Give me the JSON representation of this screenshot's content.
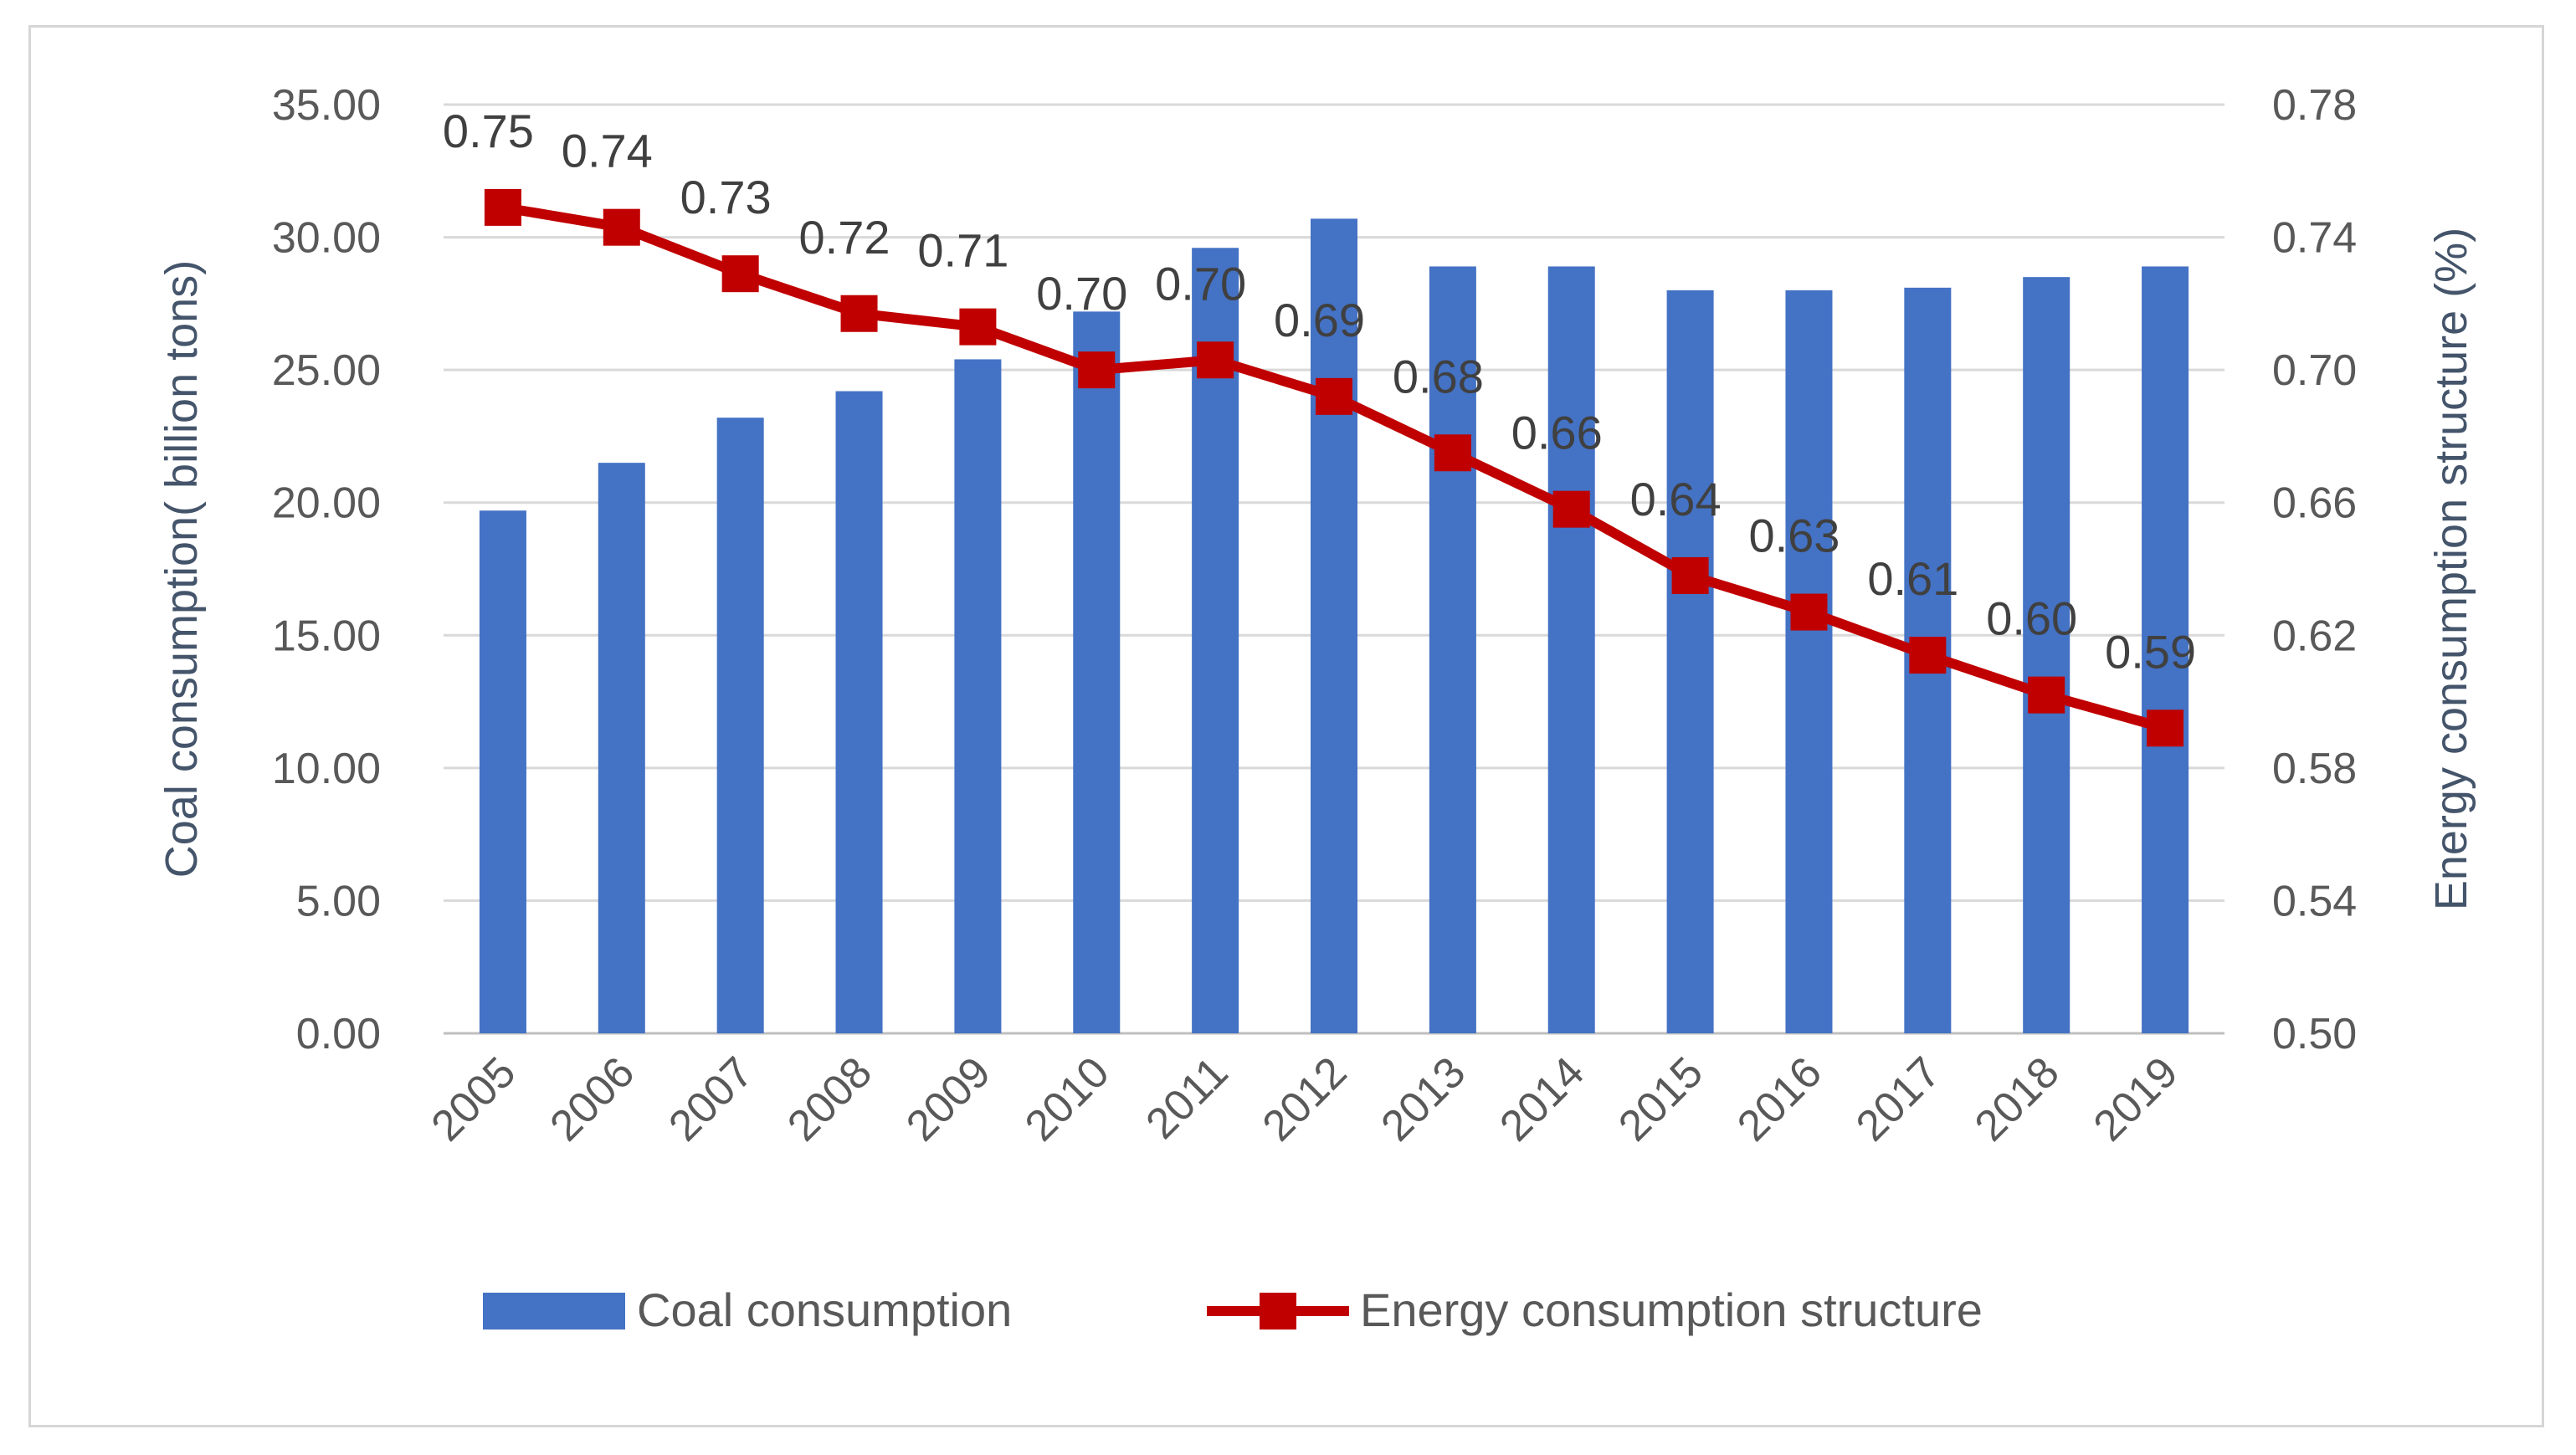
{
  "chart_data": {
    "type": "bar+line",
    "categories": [
      "2005",
      "2006",
      "2007",
      "2008",
      "2009",
      "2010",
      "2011",
      "2012",
      "2013",
      "2014",
      "2015",
      "2016",
      "2017",
      "2018",
      "2019"
    ],
    "series": [
      {
        "name": "Coal consumption",
        "type": "bar",
        "axis": "left",
        "color": "#4472c4",
        "values": [
          19.7,
          21.5,
          23.2,
          24.2,
          25.4,
          27.2,
          29.6,
          30.7,
          28.9,
          28.9,
          28.0,
          28.0,
          28.1,
          28.5,
          28.9
        ]
      },
      {
        "name": "Energy consumption structure",
        "type": "line",
        "axis": "right",
        "color": "#c00000",
        "values": [
          0.749,
          0.743,
          0.729,
          0.717,
          0.713,
          0.7,
          0.703,
          0.692,
          0.675,
          0.658,
          0.638,
          0.627,
          0.614,
          0.602,
          0.592
        ],
        "labels": [
          "0.75",
          "0.74",
          "0.73",
          "0.72",
          "0.71",
          "0.70",
          "0.70",
          "0.69",
          "0.68",
          "0.66",
          "0.64",
          "0.63",
          "0.61",
          "0.60",
          "0.59"
        ]
      }
    ],
    "ylabel_left": "Coal consumption( billion tons)",
    "ylabel_right": "Energy consumption structure (%)",
    "ylim_left": [
      0,
      35
    ],
    "yticks_left": [
      "0.00",
      "5.00",
      "10.00",
      "15.00",
      "20.00",
      "25.00",
      "30.00",
      "35.00"
    ],
    "ylim_right": [
      0.5,
      0.78
    ],
    "yticks_right": [
      "0.50",
      "0.54",
      "0.58",
      "0.62",
      "0.66",
      "0.70",
      "0.74",
      "0.78"
    ],
    "grid": true,
    "legend": "bottom"
  }
}
